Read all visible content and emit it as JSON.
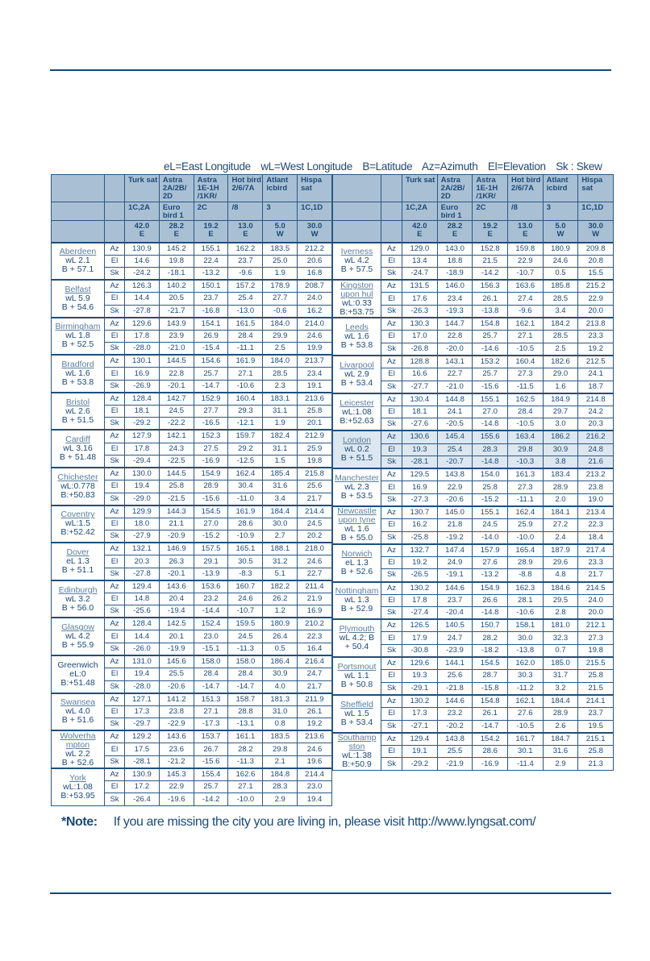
{
  "legend": [
    "eL=East Longitude",
    "wL=West Longitude",
    "B=Latitude",
    "Az=Azimuth",
    "El=Elevation",
    "Sk : Skew"
  ],
  "satellites": [
    {
      "name": "Turk sat",
      "sub": "1C,2A",
      "pos": "42.0",
      "dir": "E"
    },
    {
      "name": "Astra 2A/2B/ 2D",
      "sub": "Euro bird 1",
      "pos": "28.2",
      "dir": "E"
    },
    {
      "name": "Astra 1E-1H /1KR/",
      "sub": "2C",
      "pos": "19.2",
      "dir": "E"
    },
    {
      "name": "Hot bird 2/6/7A",
      "sub": "/8",
      "pos": "13.0",
      "dir": "E"
    },
    {
      "name": "Atlant icbird",
      "sub": "3",
      "pos": "5.0",
      "dir": "W"
    },
    {
      "name": "Hispa sat",
      "sub": "1C,1D",
      "pos": "30.0",
      "dir": "W"
    }
  ],
  "row_labels": [
    "Az",
    "El",
    "Sk"
  ],
  "left_cities": [
    {
      "name": "Aberdeen",
      "info": [
        "wL 2.1",
        "B + 57.1"
      ],
      "az": [
        "130.9",
        "145.2",
        "155.1",
        "162.2",
        "183.5",
        "212.2"
      ],
      "el": [
        "14.6",
        "19.8",
        "22.4",
        "23.7",
        "25.0",
        "20.6"
      ],
      "sk": [
        "-24.2",
        "-18.1",
        "-13.2",
        "-9.6",
        "1.9",
        "16.8"
      ]
    },
    {
      "name": "Belfast",
      "info": [
        "wL 5.9",
        "B + 54.6"
      ],
      "az": [
        "126.3",
        "140.2",
        "150.1",
        "157.2",
        "178.9",
        "208.7"
      ],
      "el": [
        "14.4",
        "20.5",
        "23.7",
        "25.4",
        "27.7",
        "24.0"
      ],
      "sk": [
        "-27.8",
        "-21.7",
        "-16.8",
        "-13.0",
        "-0.6",
        "16.2"
      ]
    },
    {
      "name": "Birmingham",
      "info": [
        "wL 1.8",
        "B + 52.5"
      ],
      "az": [
        "129.6",
        "143.9",
        "154.1",
        "161.5",
        "184.0",
        "214.0"
      ],
      "el": [
        "17.8",
        "23.9",
        "26.9",
        "28.4",
        "29.9",
        "24.6"
      ],
      "sk": [
        "-28.0",
        "-21.0",
        "-15.4",
        "-11.1",
        "2.5",
        "19.9"
      ]
    },
    {
      "name": "Bradford",
      "info": [
        "wL 1.6",
        "B + 53.8"
      ],
      "az": [
        "130.1",
        "144.5",
        "154.6",
        "161.9",
        "184.0",
        "213.7"
      ],
      "el": [
        "16.9",
        "22.8",
        "25.7",
        "27.1",
        "28.5",
        "23.4"
      ],
      "sk": [
        "-26.9",
        "-20.1",
        "-14.7",
        "-10.6",
        "2.3",
        "19.1"
      ]
    },
    {
      "name": "Bristol",
      "info": [
        "wL 2.6",
        "B + 51.5"
      ],
      "az": [
        "128.4",
        "142.7",
        "152.9",
        "160.4",
        "183.1",
        "213.6"
      ],
      "el": [
        "18.1",
        "24.5",
        "27.7",
        "29.3",
        "31.1",
        "25.8"
      ],
      "sk": [
        "-29.2",
        "-22.2",
        "-16.5",
        "-12.1",
        "1.9",
        "20.1"
      ]
    },
    {
      "name": "Cardiff",
      "info": [
        "wL 3.16",
        "B + 51.48"
      ],
      "az": [
        "127.9",
        "142.1",
        "152.3",
        "159.7",
        "182.4",
        "212.9"
      ],
      "el": [
        "17.8",
        "24.3",
        "27.5",
        "29.2",
        "31.1",
        "25.9"
      ],
      "sk": [
        "-29.4",
        "-22.5",
        "-16.9",
        "-12.5",
        "1.5",
        "19.8"
      ]
    },
    {
      "name": "Chichester",
      "info": [
        "wL:0.778",
        "B:+50.83"
      ],
      "az": [
        "130.0",
        "144.5",
        "154.9",
        "162.4",
        "185.4",
        "215.8"
      ],
      "el": [
        "19.4",
        "25.8",
        "28.9",
        "30.4",
        "31.6",
        "25.6"
      ],
      "sk": [
        "-29.0",
        "-21.5",
        "-15.6",
        "-11.0",
        "3.4",
        "21.7"
      ]
    },
    {
      "name": "Coventry",
      "info": [
        "wL:1.5",
        "B:+52.42"
      ],
      "az": [
        "129.9",
        "144.3",
        "154.5",
        "161.9",
        "184.4",
        "214.4"
      ],
      "el": [
        "18.0",
        "21.1",
        "27.0",
        "28.6",
        "30.0",
        "24.5"
      ],
      "sk": [
        "-27.9",
        "-20.9",
        "-15.2",
        "-10.9",
        "2.7",
        "20.2"
      ]
    },
    {
      "name": "Dover",
      "info": [
        "eL 1.3",
        "B + 51.1"
      ],
      "az": [
        "132.1",
        "146.9",
        "157.5",
        "165.1",
        "188.1",
        "218.0"
      ],
      "el": [
        "20.3",
        "26.3",
        "29.1",
        "30.5",
        "31.2",
        "24.6"
      ],
      "sk": [
        "-27.8",
        "-20.1",
        "-13.9",
        "-8.3",
        "5.1",
        "22.7"
      ]
    },
    {
      "name": "Edinburgh",
      "info": [
        "wL 3.2",
        "B + 56.0"
      ],
      "az": [
        "129.4",
        "143.6",
        "153.6",
        "160.7",
        "182.2",
        "211.4"
      ],
      "el": [
        "14.8",
        "20.4",
        "23.2",
        "24.6",
        "26.2",
        "21.9"
      ],
      "sk": [
        "-25.6",
        "-19.4",
        "-14.4",
        "-10.7",
        "1.2",
        "16.9"
      ]
    },
    {
      "name": "Glasgow",
      "info": [
        "wL 4.2",
        "B + 55.9"
      ],
      "az": [
        "128.4",
        "142.5",
        "152.4",
        "159.5",
        "180.9",
        "210.2"
      ],
      "el": [
        "14.4",
        "20.1",
        "23.0",
        "24.5",
        "26.4",
        "22.3"
      ],
      "sk": [
        "-26.0",
        "-19.9",
        "-15.1",
        "-11.3",
        "0.5",
        "16.4"
      ]
    },
    {
      "name": "Greenwich",
      "plain": true,
      "info": [
        "eL:0",
        "B:+51.48"
      ],
      "az": [
        "131.0",
        "145.6",
        "158.0",
        "158.0",
        "186.4",
        "216.4"
      ],
      "el": [
        "19.4",
        "25.5",
        "28.4",
        "28.4",
        "30.9",
        "24.7"
      ],
      "sk": [
        "-28.0",
        "-20.6",
        "-14.7",
        "-14.7",
        "4.0",
        "21.7"
      ]
    },
    {
      "name": "Swansea",
      "info": [
        "wL 4.0",
        "B + 51.6"
      ],
      "az": [
        "127.1",
        "141.2",
        "151.3",
        "158.7",
        "181.3",
        "211.9"
      ],
      "el": [
        "17.3",
        "23.8",
        "27.1",
        "28.8",
        "31.0",
        "26.1"
      ],
      "sk": [
        "-29.7",
        "-22.9",
        "-17.3",
        "-13.1",
        "0.8",
        "19.2"
      ]
    },
    {
      "name": "Wolverha mpton",
      "info": [
        "wL 2.2",
        "B + 52.6"
      ],
      "az": [
        "129.2",
        "143.6",
        "153.7",
        "161.1",
        "183.5",
        "213.6"
      ],
      "el": [
        "17.5",
        "23.6",
        "26.7",
        "28.2",
        "29.8",
        "24.6"
      ],
      "sk": [
        "-28.1",
        "-21.2",
        "-15.6",
        "-11.3",
        "2.1",
        "19.6"
      ]
    },
    {
      "name": "York",
      "info": [
        "wL:1.08",
        "B:+53.95"
      ],
      "az": [
        "130.9",
        "145.3",
        "155.4",
        "162.6",
        "184.8",
        "214.4"
      ],
      "el": [
        "17.2",
        "22.9",
        "25.7",
        "27.1",
        "28.3",
        "23.0"
      ],
      "sk": [
        "-26.4",
        "-19.6",
        "-14.2",
        "-10.0",
        "2.9",
        "19.4"
      ]
    }
  ],
  "right_cities": [
    {
      "name": "Iverness",
      "info": [
        "wL 4.2",
        "B + 57.5"
      ],
      "az": [
        "129.0",
        "143.0",
        "152.8",
        "159.8",
        "180.9",
        "209.8"
      ],
      "el": [
        "13.4",
        "18.8",
        "21.5",
        "22.9",
        "24.6",
        "20.8"
      ],
      "sk": [
        "-24.7",
        "-18.9",
        "-14.2",
        "-10.7",
        "0.5",
        "15.5"
      ]
    },
    {
      "name": "Kingston upon hul",
      "info": [
        "wL:0.33",
        "B:+53.75"
      ],
      "az": [
        "131.5",
        "146.0",
        "156.3",
        "163.6",
        "185.8",
        "215.2"
      ],
      "el": [
        "17.6",
        "23.4",
        "26.1",
        "27.4",
        "28.5",
        "22.9"
      ],
      "sk": [
        "-26.3",
        "-19.3",
        "-13.8",
        "-9.6",
        "3.4",
        "20.0"
      ]
    },
    {
      "name": "Leeds",
      "info": [
        "wL 1.6",
        "B + 53.8"
      ],
      "az": [
        "130.3",
        "144.7",
        "154.8",
        "162.1",
        "184.2",
        "213.8"
      ],
      "el": [
        "17.0",
        "22.8",
        "25.7",
        "27.1",
        "28.5",
        "23.3"
      ],
      "sk": [
        "-26.8",
        "-20.0",
        "-14.6",
        "-10.5",
        "2.5",
        "19.2"
      ]
    },
    {
      "name": "Livarpool",
      "info": [
        "wL 2.9",
        "B + 53.4"
      ],
      "az": [
        "128.8",
        "143.1",
        "153.2",
        "160.4",
        "182.6",
        "212.5"
      ],
      "el": [
        "16.6",
        "22.7",
        "25.7",
        "27.3",
        "29.0",
        "24.1"
      ],
      "sk": [
        "-27.7",
        "-21.0",
        "-15.6",
        "-11.5",
        "1.6",
        "18.7"
      ]
    },
    {
      "name": "Leicester",
      "info": [
        "wL:1.08",
        "B:+52.63"
      ],
      "az": [
        "130.4",
        "144.8",
        "155.1",
        "162.5",
        "184.9",
        "214.8"
      ],
      "el": [
        "18.1",
        "24.1",
        "27.0",
        "28.4",
        "29.7",
        "24.2"
      ],
      "sk": [
        "-27.6",
        "-20.5",
        "-14.8",
        "-10.5",
        "3.0",
        "20.3"
      ]
    },
    {
      "name": "London",
      "highlight": true,
      "info": [
        "wL 0.2",
        "B + 51.5"
      ],
      "az": [
        "130.6",
        "145.4",
        "155.6",
        "163.4",
        "186.2",
        "216.2"
      ],
      "el": [
        "19.3",
        "25.4",
        "28.3",
        "29.8",
        "30.9",
        "24.8"
      ],
      "sk": [
        "-28.1",
        "-20.7",
        "-14.8",
        "-10.3",
        "3.8",
        "21.6"
      ]
    },
    {
      "name": "Manchester",
      "info": [
        "wL 2.3",
        "B + 53.5"
      ],
      "az": [
        "129.5",
        "143.8",
        "154.0",
        "161.3",
        "183.4",
        "213.2"
      ],
      "el": [
        "16.9",
        "22.9",
        "25.8",
        "27.3",
        "28.9",
        "23.8"
      ],
      "sk": [
        "-27.3",
        "-20.6",
        "-15.2",
        "-11.1",
        "2.0",
        "19.0"
      ]
    },
    {
      "name": "Newcastle upon tyne",
      "info": [
        "wL 1.6",
        "B + 55.0"
      ],
      "az": [
        "130.7",
        "145.0",
        "155.1",
        "162.4",
        "184.1",
        "213.4"
      ],
      "el": [
        "16.2",
        "21.8",
        "24.5",
        "25.9",
        "27.2",
        "22.3"
      ],
      "sk": [
        "-25.8",
        "-19.2",
        "-14.0",
        "-10.0",
        "2.4",
        "18.4"
      ]
    },
    {
      "name": "Norwich",
      "info": [
        "eL 1.3",
        "B + 52.6"
      ],
      "az": [
        "132.7",
        "147.4",
        "157.9",
        "165.4",
        "187.9",
        "217.4"
      ],
      "el": [
        "19.2",
        "24.9",
        "27.6",
        "28.9",
        "29.6",
        "23.3"
      ],
      "sk": [
        "-26.5",
        "-19.1",
        "-13.2",
        "-8.8",
        "4.8",
        "21.7"
      ]
    },
    {
      "name": "Nottingham",
      "info": [
        "wL 1.3",
        "B + 52.9"
      ],
      "az": [
        "130.2",
        "144.6",
        "154.9",
        "162.3",
        "184.6",
        "214.5"
      ],
      "el": [
        "17.8",
        "23.7",
        "26.6",
        "28.1",
        "29.5",
        "24.0"
      ],
      "sk": [
        "-27.4",
        "-20.4",
        "-14.8",
        "-10.6",
        "2.8",
        "20.0"
      ]
    },
    {
      "name": "Plymouth",
      "info": [
        "wL 4.2; B",
        "+ 50.4"
      ],
      "az": [
        "126.5",
        "140.5",
        "150.7",
        "158.1",
        "181.0",
        "212.1"
      ],
      "el": [
        "17.9",
        "24.7",
        "28.2",
        "30.0",
        "32.3",
        "27.3"
      ],
      "sk": [
        "-30.8",
        "-23.9",
        "-18.2",
        "-13.8",
        "0.7",
        "19.8"
      ]
    },
    {
      "name": "Portsmout",
      "info": [
        "wL 1.1",
        "B + 50.8"
      ],
      "az": [
        "129.6",
        "144.1",
        "154.5",
        "162.0",
        "185.0",
        "215.5"
      ],
      "el": [
        "19.3",
        "25.6",
        "28.7",
        "30.3",
        "31.7",
        "25.8"
      ],
      "sk": [
        "-29.1",
        "-21.8",
        "-15.8",
        "-11.2",
        "3.2",
        "21.5"
      ]
    },
    {
      "name": "Sheffield",
      "info": [
        "wL 1.5",
        "B + 53.4"
      ],
      "az": [
        "130.2",
        "144.6",
        "154.8",
        "162.1",
        "184.4",
        "214.1"
      ],
      "el": [
        "17.3",
        "23.2",
        "26.1",
        "27.6",
        "28.9",
        "23.7"
      ],
      "sk": [
        "-27.1",
        "-20.2",
        "-14.7",
        "-10.5",
        "2.6",
        "19.5"
      ]
    },
    {
      "name": "Southamp ston",
      "info": [
        "wL:1.38",
        "B:+50.9"
      ],
      "az": [
        "129.4",
        "143.8",
        "154.2",
        "161.7",
        "184.7",
        "215.1"
      ],
      "el": [
        "19.1",
        "25.5",
        "28.6",
        "30.1",
        "31.6",
        "25.8"
      ],
      "sk": [
        "-29.2",
        "-21.9",
        "-16.9",
        "-11.4",
        "2.9",
        "21.3"
      ]
    }
  ],
  "note": {
    "label": "*Note:",
    "text": "If you are missing the city you are living in, please visit http://www.lyngsat.com/"
  },
  "colors": {
    "primary": "#1d4a78",
    "header_bg": "#a9c0d4",
    "highlight_bg": "#dde7f0",
    "rule": "#0f4a7c"
  }
}
